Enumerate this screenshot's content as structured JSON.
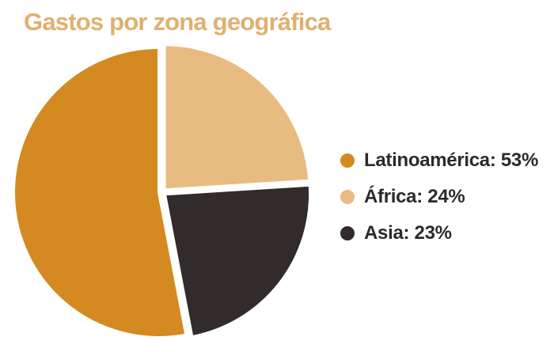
{
  "chart_data": {
    "type": "pie",
    "title": "Gastos por zona geográfica",
    "title_color": "#e0b070",
    "slices": [
      {
        "label": "Latinoamérica",
        "value": 53,
        "display": "Latinoamérica: 53%",
        "color": "#d48a20"
      },
      {
        "label": "África",
        "value": 24,
        "display": "África: 24%",
        "color": "#e8bc80"
      },
      {
        "label": "Asia",
        "value": 23,
        "display": "Asia: 23%",
        "color": "#312b2b"
      }
    ],
    "legend_position": "right"
  }
}
